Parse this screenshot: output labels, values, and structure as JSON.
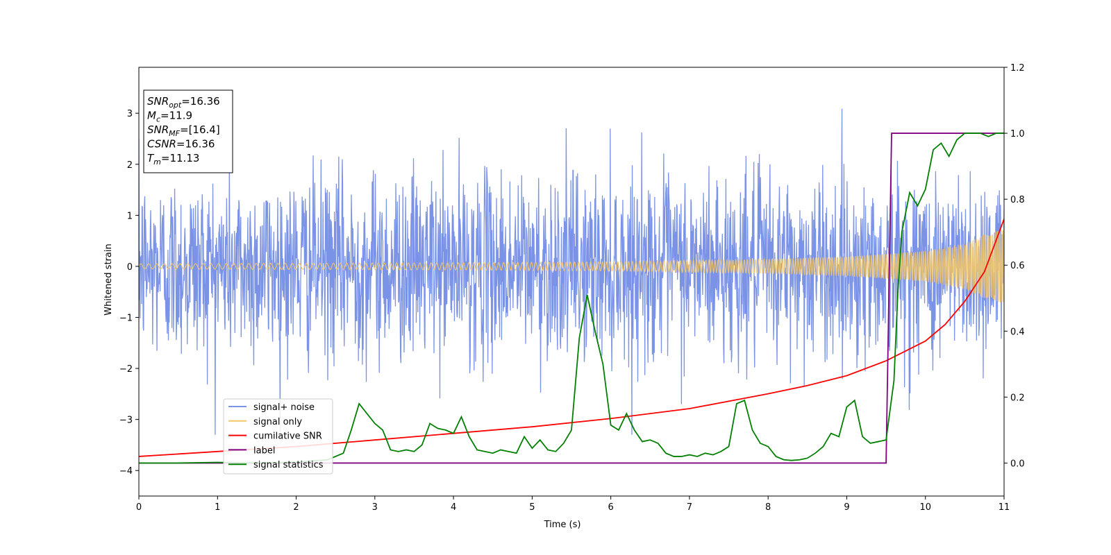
{
  "chart_data": {
    "type": "line",
    "title": "",
    "xlabel": "Time (s)",
    "ylabel": "Whitened strain",
    "ylabel_right": "",
    "xlim": [
      0,
      11
    ],
    "ylim": [
      -4.5,
      3.9
    ],
    "ylim_right": [
      -0.1,
      1.2
    ],
    "xticks": [
      "0",
      "1",
      "2",
      "3",
      "4",
      "5",
      "6",
      "7",
      "8",
      "9",
      "10",
      "11"
    ],
    "yticks": [
      "3",
      "2",
      "1",
      "0",
      "−1",
      "−2",
      "−3",
      "−4"
    ],
    "yticks_right": [
      "1.2",
      "1.0",
      "0.8",
      "0.6",
      "0.4",
      "0.2",
      "0.0"
    ],
    "legend_location": "lower left",
    "info_box": {
      "snr_opt": {
        "base": "SNR",
        "sub": "opt",
        "value": "=16.36"
      },
      "mc": {
        "base": "M",
        "sub": "c",
        "value": "=11.9"
      },
      "snr_mf": {
        "base": "SNR",
        "sub": "MF",
        "value": "=[16.4]"
      },
      "csnr": {
        "base": "CSNR",
        "sub": "",
        "value": "=16.36"
      },
      "tm": {
        "base": "T",
        "sub": "m",
        "value": "=11.13"
      }
    },
    "series": [
      {
        "name": "signal+ noise",
        "color": "#7b93e6",
        "axis": "left",
        "description_values": {
          "amplitude_std": 1.0,
          "max": 3.55,
          "min": -3.4
        }
      },
      {
        "name": "signal only",
        "color": "#f5c766",
        "axis": "left",
        "envelope": {
          "x": [
            0,
            2,
            4,
            6,
            8,
            9,
            10,
            10.5,
            11
          ],
          "amp": [
            0.05,
            0.06,
            0.07,
            0.09,
            0.14,
            0.19,
            0.3,
            0.45,
            0.8
          ]
        }
      },
      {
        "name": "cumilative SNR",
        "color": "#ff0000",
        "axis": "right",
        "x": [
          0,
          1,
          2,
          3,
          4,
          5,
          6,
          7,
          8,
          8.5,
          9,
          9.5,
          10,
          10.25,
          10.5,
          10.75,
          11
        ],
        "y": [
          0.02,
          0.035,
          0.05,
          0.07,
          0.09,
          0.11,
          0.135,
          0.165,
          0.21,
          0.235,
          0.265,
          0.31,
          0.37,
          0.42,
          0.49,
          0.58,
          0.74
        ]
      },
      {
        "name": "label",
        "color": "#800080",
        "axis": "right",
        "x": [
          0,
          9.5,
          9.57,
          11
        ],
        "y": [
          0.0,
          0.0,
          1.0,
          1.0
        ]
      },
      {
        "name": "signal statistics",
        "color": "#008000",
        "axis": "right",
        "x": [
          0,
          0.5,
          1,
          1.5,
          2,
          2.4,
          2.6,
          2.7,
          2.8,
          2.9,
          3.0,
          3.1,
          3.2,
          3.3,
          3.4,
          3.5,
          3.6,
          3.7,
          3.8,
          3.9,
          4.0,
          4.1,
          4.2,
          4.3,
          4.4,
          4.5,
          4.6,
          4.7,
          4.8,
          4.9,
          5.0,
          5.1,
          5.2,
          5.3,
          5.4,
          5.5,
          5.6,
          5.7,
          5.8,
          5.9,
          6.0,
          6.1,
          6.2,
          6.3,
          6.4,
          6.5,
          6.6,
          6.7,
          6.8,
          6.9,
          7.0,
          7.1,
          7.2,
          7.3,
          7.4,
          7.5,
          7.6,
          7.7,
          7.8,
          7.9,
          8.0,
          8.1,
          8.2,
          8.3,
          8.4,
          8.5,
          8.6,
          8.7,
          8.8,
          8.9,
          9.0,
          9.1,
          9.2,
          9.3,
          9.4,
          9.5,
          9.6,
          9.65,
          9.7,
          9.8,
          9.9,
          10.0,
          10.1,
          10.2,
          10.3,
          10.4,
          10.5,
          10.6,
          10.7,
          10.8,
          10.9,
          11.0
        ],
        "y": [
          0.0,
          0.0,
          0.002,
          0.0,
          0.003,
          0.01,
          0.03,
          0.1,
          0.18,
          0.15,
          0.12,
          0.1,
          0.04,
          0.035,
          0.04,
          0.035,
          0.055,
          0.12,
          0.105,
          0.1,
          0.09,
          0.14,
          0.08,
          0.04,
          0.035,
          0.03,
          0.04,
          0.035,
          0.03,
          0.08,
          0.045,
          0.07,
          0.04,
          0.035,
          0.06,
          0.1,
          0.38,
          0.51,
          0.4,
          0.3,
          0.115,
          0.1,
          0.15,
          0.1,
          0.065,
          0.07,
          0.06,
          0.03,
          0.02,
          0.02,
          0.025,
          0.02,
          0.03,
          0.025,
          0.035,
          0.05,
          0.18,
          0.19,
          0.1,
          0.06,
          0.05,
          0.02,
          0.01,
          0.008,
          0.01,
          0.015,
          0.03,
          0.05,
          0.09,
          0.08,
          0.17,
          0.19,
          0.08,
          0.06,
          0.065,
          0.07,
          0.25,
          0.52,
          0.7,
          0.82,
          0.78,
          0.83,
          0.95,
          0.97,
          0.93,
          0.98,
          1.0,
          1.0,
          1.0,
          0.99,
          1.0,
          1.0
        ]
      }
    ]
  }
}
